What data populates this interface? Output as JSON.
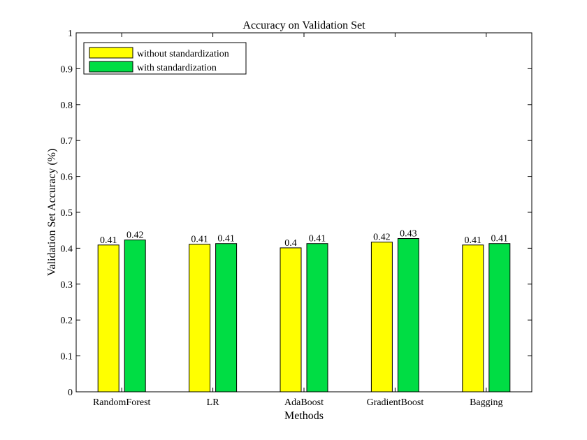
{
  "chart_data": {
    "type": "bar",
    "title": "Accuracy on Validation Set",
    "xlabel": "Methods",
    "ylabel": "Validation Set Accuracy (%)",
    "ylim": [
      0,
      1
    ],
    "yticks": [
      "0",
      "0.1",
      "0.2",
      "0.3",
      "0.4",
      "0.5",
      "0.6",
      "0.7",
      "0.8",
      "0.9",
      "1"
    ],
    "categories": [
      "RandomForest",
      "LR",
      "AdaBoost",
      "GradientBoost",
      "Bagging"
    ],
    "series": [
      {
        "name": "without standardization",
        "color": "#ffff00",
        "values": [
          0.409,
          0.411,
          0.401,
          0.417,
          0.409
        ],
        "labels": [
          "0.41",
          "0.41",
          "0.4",
          "0.42",
          "0.41"
        ]
      },
      {
        "name": "with standardization",
        "color": "#00dd44",
        "values": [
          0.423,
          0.413,
          0.413,
          0.427,
          0.413
        ],
        "labels": [
          "0.42",
          "0.41",
          "0.41",
          "0.43",
          "0.41"
        ]
      }
    ],
    "grid": false,
    "legend_position": "top-left"
  }
}
